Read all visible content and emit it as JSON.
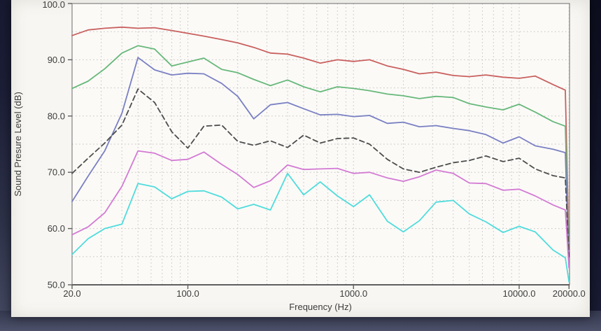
{
  "chart_data": {
    "type": "line",
    "title": "",
    "xlabel": "Frequency (Hz)",
    "ylabel": "Sound Presure Level (dB)",
    "x_scale": "log",
    "xlim": [
      20,
      20000
    ],
    "ylim": [
      50,
      100
    ],
    "x_tick_values": [
      20,
      100,
      1000,
      10000,
      20000
    ],
    "x_tick_labels": [
      "20.0",
      "100.0",
      "1000.0",
      "10000.0",
      "20000.0"
    ],
    "y_tick_values": [
      50,
      60,
      70,
      80,
      90,
      100
    ],
    "y_tick_labels": [
      "50.0",
      "60.0",
      "70.0",
      "80.0",
      "90.0",
      "100.0"
    ],
    "grid": {
      "style": "dotted",
      "horizontal_lines_db": [
        55,
        60,
        65,
        70,
        75,
        80,
        85,
        90,
        95
      ],
      "vertical_lines_hz": [
        30,
        40,
        50,
        60,
        70,
        80,
        90,
        100,
        200,
        300,
        400,
        500,
        600,
        700,
        800,
        900,
        1000,
        2000,
        3000,
        4000,
        5000,
        6000,
        7000,
        8000,
        9000,
        10000,
        20000
      ]
    },
    "legend": "none",
    "frequencies_hz": [
      20,
      25,
      31.5,
      40,
      50,
      63,
      80,
      100,
      125,
      160,
      200,
      250,
      315,
      400,
      500,
      630,
      800,
      1000,
      1250,
      1600,
      2000,
      2500,
      3150,
      4000,
      5000,
      6300,
      8000,
      10000,
      12500,
      16000,
      19000,
      20000
    ],
    "series": [
      {
        "name": "red-curve",
        "color": "#c9605e",
        "style": "solid",
        "values_db": [
          94.3,
          95.3,
          95.6,
          95.8,
          95.6,
          95.7,
          95.2,
          94.7,
          94.2,
          93.6,
          93.0,
          92.2,
          91.2,
          91.0,
          90.3,
          89.4,
          90.0,
          89.7,
          90.0,
          88.9,
          88.3,
          87.5,
          87.8,
          87.2,
          87.0,
          87.3,
          86.9,
          86.7,
          87.1,
          85.6,
          84.6,
          56.0
        ]
      },
      {
        "name": "green-curve",
        "color": "#67b87a",
        "style": "solid",
        "values_db": [
          84.9,
          86.2,
          88.4,
          91.2,
          92.5,
          91.9,
          88.9,
          89.6,
          90.3,
          88.3,
          87.7,
          86.5,
          85.4,
          86.4,
          85.2,
          84.3,
          85.2,
          84.9,
          84.5,
          83.9,
          83.6,
          83.1,
          83.5,
          83.3,
          82.2,
          81.6,
          81.1,
          82.1,
          80.7,
          79.0,
          78.2,
          54.0
        ]
      },
      {
        "name": "blue-curve",
        "color": "#7a80c3",
        "style": "solid",
        "values_db": [
          64.8,
          69.3,
          73.8,
          80.5,
          90.4,
          88.2,
          87.3,
          87.6,
          87.5,
          85.8,
          83.5,
          79.5,
          82.0,
          82.4,
          81.3,
          80.2,
          80.3,
          79.9,
          80.1,
          78.7,
          78.9,
          78.1,
          78.3,
          77.8,
          77.4,
          76.7,
          75.2,
          76.3,
          74.7,
          74.1,
          73.5,
          53.0
        ]
      },
      {
        "name": "gray-dashed-curve",
        "color": "#4d4d4d",
        "style": "dashed",
        "values_db": [
          69.8,
          72.5,
          75.2,
          78.4,
          84.8,
          82.4,
          77.2,
          74.3,
          78.2,
          78.4,
          75.5,
          74.8,
          75.6,
          74.4,
          76.6,
          75.2,
          76.0,
          76.1,
          75.0,
          72.3,
          70.6,
          70.0,
          70.9,
          71.7,
          72.1,
          72.9,
          71.9,
          72.5,
          70.6,
          69.4,
          69.0,
          55.0
        ]
      },
      {
        "name": "magenta-curve",
        "color": "#d37ad3",
        "style": "solid",
        "values_db": [
          58.9,
          60.3,
          62.8,
          67.5,
          73.8,
          73.4,
          72.1,
          72.3,
          73.6,
          71.4,
          69.6,
          67.3,
          68.5,
          71.3,
          70.5,
          70.6,
          70.7,
          69.8,
          70.0,
          69.0,
          68.4,
          69.2,
          70.4,
          69.8,
          68.1,
          68.0,
          66.8,
          67.0,
          65.8,
          64.2,
          63.3,
          53.0
        ]
      },
      {
        "name": "cyan-curve",
        "color": "#4fdcdc",
        "style": "solid",
        "values_db": [
          55.4,
          58.2,
          60.0,
          60.8,
          68.0,
          67.4,
          65.3,
          66.6,
          66.7,
          65.6,
          63.5,
          64.3,
          63.3,
          69.8,
          66.0,
          68.3,
          65.8,
          63.9,
          66.0,
          61.3,
          59.4,
          61.4,
          64.7,
          65.0,
          62.6,
          61.2,
          59.3,
          60.4,
          59.4,
          56.2,
          54.8,
          50.5
        ]
      }
    ]
  },
  "colors": {
    "panel_bg": "#f7f6f2",
    "plot_bg": "#fbfaf7",
    "plot_border": "#8a8a8a",
    "axis_line": "#5f5f5f",
    "grid": "#c6c6c6",
    "text": "#3c3c3c"
  }
}
